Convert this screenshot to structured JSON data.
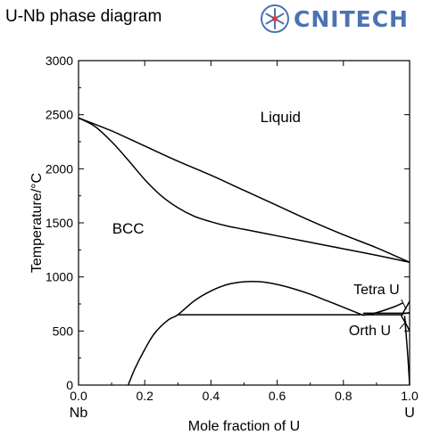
{
  "title": "U-Nb phase diagram",
  "logo": {
    "text": "CNITECH",
    "color": "#4d72b3"
  },
  "chart_data": {
    "type": "line",
    "title": "U-Nb phase diagram",
    "xlabel": "Mole fraction of U",
    "ylabel": "Temperature/°C",
    "xlim": [
      0,
      1
    ],
    "ylim": [
      0,
      3000
    ],
    "xticks": [
      "0.0",
      "0.2",
      "0.4",
      "0.6",
      "0.8",
      "1.0"
    ],
    "yticks": [
      "0",
      "500",
      "1000",
      "1500",
      "2000",
      "2500",
      "3000"
    ],
    "x_end_labels": {
      "left": "Nb",
      "right": "U"
    },
    "grid": false,
    "legend": "none",
    "line_color": "#000000",
    "phase_labels": [
      {
        "text": "Liquid",
        "x": 0.61,
        "y": 2430
      },
      {
        "text": "BCC",
        "x": 0.15,
        "y": 1400
      },
      {
        "text": "Tetra U",
        "x": 0.9,
        "y": 840
      },
      {
        "text": "Orth U",
        "x": 0.88,
        "y": 460
      }
    ],
    "series": [
      {
        "id": "liquidus",
        "points": [
          [
            0,
            2470
          ],
          [
            0.1,
            2350
          ],
          [
            0.2,
            2210
          ],
          [
            0.3,
            2070
          ],
          [
            0.4,
            1940
          ],
          [
            0.5,
            1800
          ],
          [
            0.6,
            1660
          ],
          [
            0.7,
            1520
          ],
          [
            0.8,
            1390
          ],
          [
            0.9,
            1270
          ],
          [
            1.0,
            1135
          ]
        ]
      },
      {
        "id": "solidus",
        "points": [
          [
            0,
            2470
          ],
          [
            0.05,
            2390
          ],
          [
            0.1,
            2250
          ],
          [
            0.15,
            2080
          ],
          [
            0.2,
            1900
          ],
          [
            0.25,
            1750
          ],
          [
            0.3,
            1640
          ],
          [
            0.35,
            1560
          ],
          [
            0.4,
            1510
          ],
          [
            0.45,
            1470
          ],
          [
            0.5,
            1440
          ],
          [
            0.6,
            1380
          ],
          [
            0.7,
            1320
          ],
          [
            0.8,
            1260
          ],
          [
            0.9,
            1200
          ],
          [
            1.0,
            1135
          ]
        ]
      },
      {
        "id": "bcc-miscibility-gap",
        "points": [
          [
            0.15,
            0
          ],
          [
            0.17,
            150
          ],
          [
            0.2,
            330
          ],
          [
            0.23,
            480
          ],
          [
            0.27,
            600
          ],
          [
            0.3,
            650
          ],
          [
            0.35,
            780
          ],
          [
            0.4,
            870
          ],
          [
            0.45,
            930
          ],
          [
            0.5,
            955
          ],
          [
            0.55,
            955
          ],
          [
            0.6,
            930
          ],
          [
            0.65,
            890
          ],
          [
            0.7,
            840
          ],
          [
            0.75,
            780
          ],
          [
            0.8,
            720
          ],
          [
            0.86,
            645
          ]
        ]
      },
      {
        "id": "monotectoid-line",
        "points": [
          [
            0.3,
            650
          ],
          [
            0.98,
            650
          ]
        ]
      },
      {
        "id": "bcc-tetra-boundary",
        "points": [
          [
            0.86,
            645
          ],
          [
            0.9,
            670
          ],
          [
            0.95,
            720
          ],
          [
            0.98,
            760
          ]
        ]
      },
      {
        "id": "eutectoid-line",
        "points": [
          [
            0.86,
            665
          ],
          [
            1.0,
            665
          ]
        ]
      },
      {
        "id": "tetra-boundary-a",
        "points": [
          [
            0.975,
            640
          ],
          [
            1.0,
            775
          ]
        ]
      },
      {
        "id": "tetra-boundary-b",
        "points": [
          [
            0.98,
            660
          ],
          [
            1.0,
            670
          ]
        ]
      },
      {
        "id": "orth-boundary",
        "points": [
          [
            0.985,
            640
          ],
          [
            0.99,
            450
          ],
          [
            0.995,
            250
          ],
          [
            1.0,
            0
          ]
        ]
      },
      {
        "id": "orth-boundary-b",
        "points": [
          [
            0.975,
            640
          ],
          [
            0.99,
            560
          ],
          [
            1.0,
            500
          ]
        ]
      }
    ]
  }
}
